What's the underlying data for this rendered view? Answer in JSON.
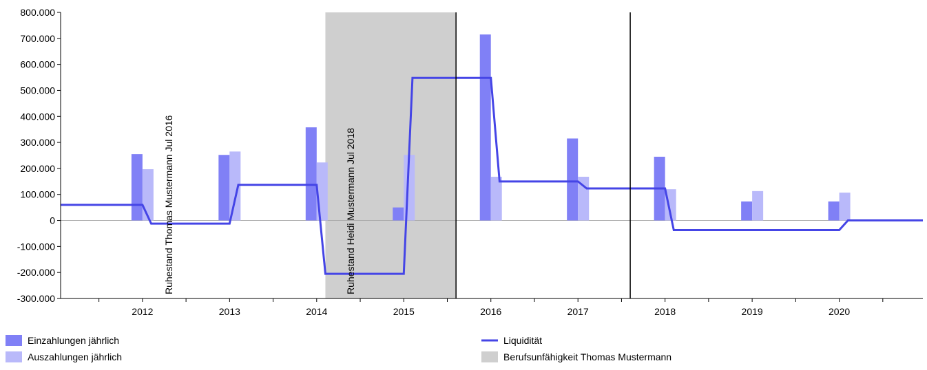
{
  "chart_data": {
    "type": "combo",
    "xlim": [
      2011.06,
      2020.96
    ],
    "xticks": [
      2012,
      2013,
      2014,
      2015,
      2016,
      2017,
      2018,
      2019,
      2020
    ],
    "xminorticks": [
      2011.5,
      2012.5,
      2013.5,
      2014.5,
      2015.5,
      2016.5,
      2017.5,
      2018.5,
      2019.5,
      2020.5
    ],
    "ylim": [
      -300000,
      800000
    ],
    "yticks": [
      {
        "value": -300000,
        "label": "-300.000"
      },
      {
        "value": -200000,
        "label": "-200.000"
      },
      {
        "value": -100000,
        "label": "-100.000"
      },
      0,
      {
        "value": 100000,
        "label": "100.000"
      },
      {
        "value": 200000,
        "label": "200.000"
      },
      {
        "value": 300000,
        "label": "300.000"
      },
      {
        "value": 400000,
        "label": "400.000"
      },
      {
        "value": 500000,
        "label": "500.000"
      },
      {
        "value": 600000,
        "label": "600.000"
      },
      {
        "value": 700000,
        "label": "700.000"
      },
      {
        "value": 800000,
        "label": "800.000"
      }
    ],
    "legend": "bottom",
    "series": [
      {
        "name": "Einzahlungen jährlich",
        "type": "bar",
        "color": "#8080f6",
        "x": [
          2012,
          2013,
          2014,
          2015,
          2016,
          2017,
          2018,
          2019,
          2020
        ],
        "values": [
          255000,
          252000,
          358000,
          50000,
          715000,
          315000,
          245000,
          73000,
          73000
        ]
      },
      {
        "name": "Auszahlungen jährlich",
        "type": "bar",
        "color": "#b9b9fa",
        "x": [
          2012,
          2013,
          2014,
          2015,
          2016,
          2017,
          2018,
          2019,
          2020
        ],
        "values": [
          197000,
          265000,
          223000,
          252000,
          168000,
          168000,
          120000,
          113000,
          107000
        ]
      },
      {
        "name": "Liquidität",
        "type": "line",
        "color": "#4545e6",
        "x": [
          2011.06,
          2012.0,
          2012.1,
          2013.0,
          2013.1,
          2014.0,
          2014.1,
          2015.0,
          2015.1,
          2016.0,
          2016.1,
          2017.0,
          2017.1,
          2018.0,
          2018.1,
          2020.0,
          2020.1,
          2020.96
        ],
        "values": [
          60000,
          60000,
          -12000,
          -12000,
          137000,
          137000,
          -205000,
          -205000,
          548000,
          548000,
          150000,
          150000,
          123000,
          123000,
          -37000,
          -37000,
          0,
          0
        ]
      }
    ],
    "bands": [
      {
        "name": "Berufsunfähigkeit Thomas Mustermann",
        "x": [
          2014.1,
          2015.6
        ],
        "color": "#cfcfcf"
      }
    ],
    "vlines": [
      2015.6,
      2017.6
    ],
    "annotations": [
      {
        "text": "Ruhestand Thomas Mustermann Jul 2016",
        "x": 2012.3
      },
      {
        "text": "Ruhestand Heidi Mustermann Jul 2018",
        "x": 2014.39
      }
    ]
  }
}
